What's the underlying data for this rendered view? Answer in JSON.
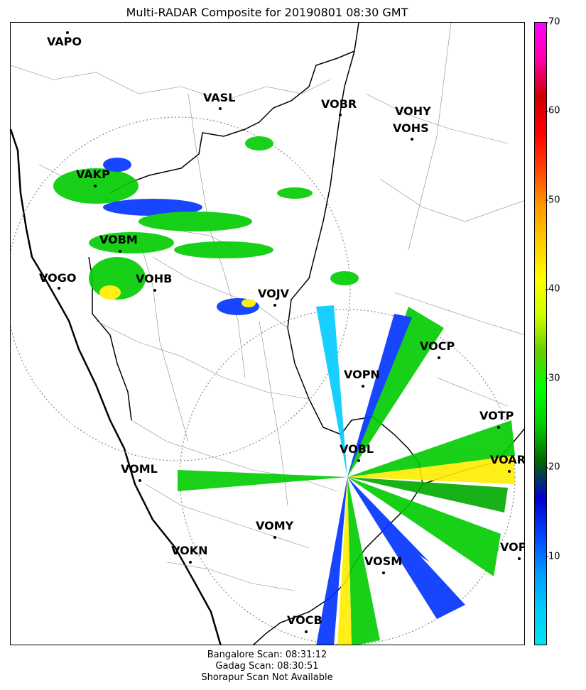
{
  "title": "Multi-RADAR Composite for 20190801 08:30 GMT",
  "stations": [
    {
      "id": "VAPO"
    },
    {
      "id": "VASL"
    },
    {
      "id": "VOBR"
    },
    {
      "id": "VOHY"
    },
    {
      "id": "VOHS"
    },
    {
      "id": "VAKP"
    },
    {
      "id": "VOBM"
    },
    {
      "id": "VOGO"
    },
    {
      "id": "VOHB"
    },
    {
      "id": "VOJV"
    },
    {
      "id": "VOCP"
    },
    {
      "id": "VOPN"
    },
    {
      "id": "VOTP"
    },
    {
      "id": "VOBL"
    },
    {
      "id": "VOAR"
    },
    {
      "id": "VOML"
    },
    {
      "id": "VOMY"
    },
    {
      "id": "VOKN"
    },
    {
      "id": "VOPC"
    },
    {
      "id": "VOSM"
    },
    {
      "id": "VOCB"
    }
  ],
  "colorbar": {
    "ticks": [
      "10",
      "20",
      "30",
      "40",
      "50",
      "60",
      "70"
    ],
    "colors": [
      "#00e5ee",
      "#00ccff",
      "#0099ff",
      "#0044ff",
      "#0000cc",
      "#006600",
      "#00cc00",
      "#00ff00",
      "#66cc00",
      "#ccff00",
      "#ffff00",
      "#ffcc00",
      "#ff9900",
      "#ff4400",
      "#ff0000",
      "#cc0000",
      "#ff00aa",
      "#ff00ff"
    ]
  },
  "footer": {
    "line1": "Bangalore Scan: 08:31:12",
    "line2": "Gadag Scan: 08:30:51",
    "line3": "Shorapur Scan Not Available"
  }
}
